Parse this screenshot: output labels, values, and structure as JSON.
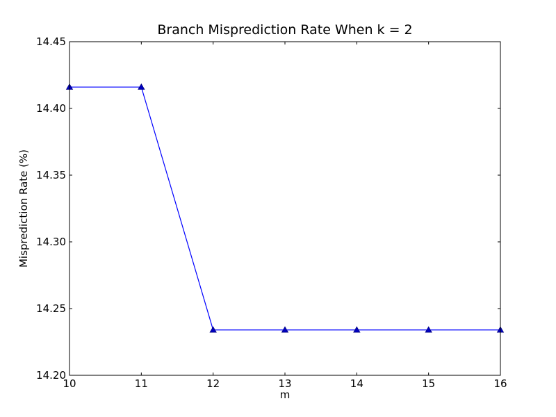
{
  "chart_data": {
    "type": "line",
    "title": "Branch Misprediction Rate When k = 2",
    "xlabel": "m",
    "ylabel": "Misprediction Rate (%)",
    "xlim": [
      10,
      16
    ],
    "ylim": [
      14.2,
      14.45
    ],
    "x_ticks": [
      "10",
      "11",
      "12",
      "13",
      "14",
      "15",
      "16"
    ],
    "y_ticks": [
      "14.20",
      "14.25",
      "14.30",
      "14.35",
      "14.40",
      "14.45"
    ],
    "grid": false,
    "legend": "none",
    "series": [
      {
        "x": [
          10,
          11,
          12,
          13,
          14,
          15,
          16
        ],
        "values": [
          14.416,
          14.416,
          14.234,
          14.234,
          14.234,
          14.234,
          14.234
        ],
        "color": "#0000ff",
        "marker": "triangle-up"
      }
    ]
  }
}
